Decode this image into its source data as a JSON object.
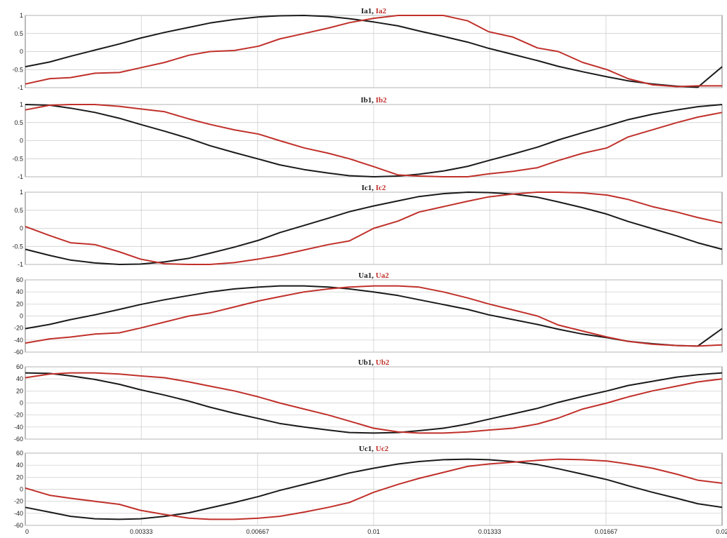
{
  "colors": {
    "series1": "#1a1a1a",
    "series2": "#c0302a",
    "grid": "#c8c8c8",
    "axis": "#555555"
  },
  "chart_data": [
    {
      "type": "line",
      "title": "Ia1, Ia2",
      "series": [
        {
          "name": "Ia1",
          "x": [
            0,
            0.0007,
            0.0013,
            0.002,
            0.0027,
            0.0033,
            0.004,
            0.0047,
            0.0053,
            0.006,
            0.0067,
            0.0073,
            0.008,
            0.0087,
            0.0093,
            0.01,
            0.0107,
            0.0113,
            0.012,
            0.0127,
            0.0133,
            0.014,
            0.0147,
            0.0153,
            0.016,
            0.0167,
            0.0173,
            0.018,
            0.0187,
            0.0193,
            0.02
          ],
          "values": [
            -0.42,
            -0.29,
            -0.13,
            0.04,
            0.21,
            0.37,
            0.53,
            0.67,
            0.79,
            0.89,
            0.96,
            0.99,
            1.0,
            0.97,
            0.91,
            0.82,
            0.71,
            0.57,
            0.42,
            0.26,
            0.09,
            -0.08,
            -0.25,
            -0.41,
            -0.56,
            -0.7,
            -0.81,
            -0.9,
            -0.96,
            -0.99,
            -0.42
          ]
        },
        {
          "name": "Ia2",
          "x": [
            0,
            0.0007,
            0.0013,
            0.002,
            0.0027,
            0.0033,
            0.004,
            0.0047,
            0.0053,
            0.006,
            0.0067,
            0.0073,
            0.008,
            0.0087,
            0.0093,
            0.01,
            0.0107,
            0.0113,
            0.012,
            0.0127,
            0.0133,
            0.014,
            0.0147,
            0.0153,
            0.016,
            0.0167,
            0.0173,
            0.018,
            0.0187,
            0.0193,
            0.02
          ],
          "values": [
            -0.9,
            -0.75,
            -0.72,
            -0.6,
            -0.58,
            -0.45,
            -0.3,
            -0.1,
            0.0,
            0.03,
            0.15,
            0.35,
            0.5,
            0.65,
            0.8,
            0.92,
            1.0,
            1.0,
            1.0,
            0.85,
            0.55,
            0.4,
            0.1,
            0.0,
            -0.3,
            -0.5,
            -0.75,
            -0.92,
            -0.97,
            -0.95,
            -0.95
          ]
        }
      ],
      "ylim": [
        -1,
        1
      ],
      "yticks": [
        "1",
        "0.5",
        "0",
        "-0.5",
        "-1"
      ],
      "grid": true
    },
    {
      "type": "line",
      "title": "Ib1, Ib2",
      "series": [
        {
          "name": "Ib1",
          "x": [
            0,
            0.0007,
            0.0013,
            0.002,
            0.0027,
            0.0033,
            0.004,
            0.0047,
            0.0053,
            0.006,
            0.0067,
            0.0073,
            0.008,
            0.0087,
            0.0093,
            0.01,
            0.0107,
            0.0113,
            0.012,
            0.0127,
            0.0133,
            0.014,
            0.0147,
            0.0153,
            0.016,
            0.0167,
            0.0173,
            0.018,
            0.0187,
            0.0193,
            0.02
          ],
          "values": [
            1.0,
            0.98,
            0.9,
            0.78,
            0.62,
            0.45,
            0.26,
            0.06,
            -0.14,
            -0.33,
            -0.51,
            -0.67,
            -0.8,
            -0.9,
            -0.97,
            -1.0,
            -0.98,
            -0.93,
            -0.84,
            -0.71,
            -0.55,
            -0.37,
            -0.18,
            0.02,
            0.22,
            0.41,
            0.58,
            0.73,
            0.85,
            0.94,
            1.0
          ]
        },
        {
          "name": "Ib2",
          "x": [
            0,
            0.0007,
            0.0013,
            0.002,
            0.0027,
            0.0033,
            0.004,
            0.0047,
            0.0053,
            0.006,
            0.0067,
            0.0073,
            0.008,
            0.0087,
            0.0093,
            0.01,
            0.0107,
            0.0113,
            0.012,
            0.0127,
            0.0133,
            0.014,
            0.0147,
            0.0153,
            0.016,
            0.0167,
            0.0173,
            0.018,
            0.0187,
            0.0193,
            0.02
          ],
          "values": [
            0.85,
            0.98,
            1.0,
            1.0,
            0.95,
            0.88,
            0.8,
            0.6,
            0.45,
            0.3,
            0.18,
            0.0,
            -0.2,
            -0.35,
            -0.5,
            -0.72,
            -0.95,
            -0.98,
            -1.0,
            -1.0,
            -0.92,
            -0.85,
            -0.75,
            -0.55,
            -0.35,
            -0.2,
            0.1,
            0.3,
            0.5,
            0.65,
            0.78
          ]
        }
      ],
      "ylim": [
        -1,
        1
      ],
      "yticks": [
        "1",
        "0.5",
        "0",
        "-0.5",
        "-1"
      ],
      "grid": true
    },
    {
      "type": "line",
      "title": "Ic1, Ic2",
      "series": [
        {
          "name": "Ic1",
          "x": [
            0,
            0.0007,
            0.0013,
            0.002,
            0.0027,
            0.0033,
            0.004,
            0.0047,
            0.0053,
            0.006,
            0.0067,
            0.0073,
            0.008,
            0.0087,
            0.0093,
            0.01,
            0.0107,
            0.0113,
            0.012,
            0.0127,
            0.0133,
            0.014,
            0.0147,
            0.0153,
            0.016,
            0.0167,
            0.0173,
            0.018,
            0.0187,
            0.0193,
            0.02
          ],
          "values": [
            -0.58,
            -0.75,
            -0.88,
            -0.96,
            -1.0,
            -0.99,
            -0.93,
            -0.83,
            -0.69,
            -0.52,
            -0.33,
            -0.12,
            0.08,
            0.28,
            0.46,
            0.62,
            0.76,
            0.88,
            0.96,
            1.0,
            0.99,
            0.95,
            0.86,
            0.73,
            0.57,
            0.39,
            0.19,
            -0.01,
            -0.21,
            -0.4,
            -0.58
          ]
        },
        {
          "name": "Ic2",
          "x": [
            0,
            0.0007,
            0.0013,
            0.002,
            0.0027,
            0.0033,
            0.004,
            0.0047,
            0.0053,
            0.006,
            0.0067,
            0.0073,
            0.008,
            0.0087,
            0.0093,
            0.01,
            0.0107,
            0.0113,
            0.012,
            0.0127,
            0.0133,
            0.014,
            0.0147,
            0.0153,
            0.016,
            0.0167,
            0.0173,
            0.018,
            0.0187,
            0.0193,
            0.02
          ],
          "values": [
            0.05,
            -0.2,
            -0.4,
            -0.45,
            -0.65,
            -0.85,
            -0.98,
            -1.0,
            -1.0,
            -0.95,
            -0.85,
            -0.75,
            -0.6,
            -0.45,
            -0.35,
            0.0,
            0.2,
            0.45,
            0.6,
            0.75,
            0.87,
            0.95,
            1.0,
            1.0,
            0.98,
            0.92,
            0.8,
            0.6,
            0.45,
            0.3,
            0.15
          ]
        }
      ],
      "ylim": [
        -1,
        1
      ],
      "yticks": [
        "1",
        "0.5",
        "0",
        "-0.5",
        "-1"
      ],
      "grid": true
    },
    {
      "type": "line",
      "title": "Ua1, Ua2",
      "series": [
        {
          "name": "Ua1",
          "x": [
            0,
            0.0007,
            0.0013,
            0.002,
            0.0027,
            0.0033,
            0.004,
            0.0047,
            0.0053,
            0.006,
            0.0067,
            0.0073,
            0.008,
            0.0087,
            0.0093,
            0.01,
            0.0107,
            0.0113,
            0.012,
            0.0127,
            0.0133,
            0.014,
            0.0147,
            0.0153,
            0.016,
            0.0167,
            0.0173,
            0.018,
            0.0187,
            0.0193,
            0.02
          ],
          "values": [
            -21,
            -14,
            -6,
            2,
            11,
            19,
            27,
            34,
            40,
            45,
            48,
            50,
            50,
            48,
            45,
            40,
            34,
            27,
            19,
            11,
            2,
            -6,
            -14,
            -22,
            -30,
            -36,
            -42,
            -46,
            -49,
            -50,
            -21
          ]
        },
        {
          "name": "Ua2",
          "x": [
            0,
            0.0007,
            0.0013,
            0.002,
            0.0027,
            0.0033,
            0.004,
            0.0047,
            0.0053,
            0.006,
            0.0067,
            0.0073,
            0.008,
            0.0087,
            0.0093,
            0.01,
            0.0107,
            0.0113,
            0.012,
            0.0127,
            0.0133,
            0.014,
            0.0147,
            0.0153,
            0.016,
            0.0167,
            0.0173,
            0.018,
            0.0187,
            0.0193,
            0.02
          ],
          "values": [
            -45,
            -38,
            -35,
            -30,
            -28,
            -20,
            -10,
            0,
            5,
            15,
            25,
            32,
            40,
            45,
            48,
            50,
            50,
            48,
            40,
            30,
            20,
            10,
            0,
            -15,
            -25,
            -35,
            -42,
            -47,
            -49,
            -50,
            -48
          ]
        }
      ],
      "ylim": [
        -60,
        60
      ],
      "yticks": [
        "60",
        "40",
        "20",
        "0",
        "-20",
        "-40",
        "-60"
      ],
      "grid": true
    },
    {
      "type": "line",
      "title": "Ub1, Ub2",
      "series": [
        {
          "name": "Ub1",
          "x": [
            0,
            0.0007,
            0.0013,
            0.002,
            0.0027,
            0.0033,
            0.004,
            0.0047,
            0.0053,
            0.006,
            0.0067,
            0.0073,
            0.008,
            0.0087,
            0.0093,
            0.01,
            0.0107,
            0.0113,
            0.012,
            0.0127,
            0.0133,
            0.014,
            0.0147,
            0.0153,
            0.016,
            0.0167,
            0.0173,
            0.018,
            0.0187,
            0.0193,
            0.02
          ],
          "values": [
            50,
            49,
            45,
            39,
            31,
            22,
            13,
            3,
            -7,
            -17,
            -26,
            -34,
            -40,
            -45,
            -49,
            -50,
            -49,
            -46,
            -42,
            -35,
            -27,
            -18,
            -9,
            1,
            11,
            20,
            29,
            36,
            43,
            47,
            50
          ]
        },
        {
          "name": "Ub2",
          "x": [
            0,
            0.0007,
            0.0013,
            0.002,
            0.0027,
            0.0033,
            0.004,
            0.0047,
            0.0053,
            0.006,
            0.0067,
            0.0073,
            0.008,
            0.0087,
            0.0093,
            0.01,
            0.0107,
            0.0113,
            0.012,
            0.0127,
            0.0133,
            0.014,
            0.0147,
            0.0153,
            0.016,
            0.0167,
            0.0173,
            0.018,
            0.0187,
            0.0193,
            0.02
          ],
          "values": [
            42,
            48,
            50,
            50,
            48,
            45,
            42,
            35,
            28,
            20,
            10,
            0,
            -10,
            -20,
            -30,
            -42,
            -48,
            -50,
            -50,
            -48,
            -45,
            -42,
            -35,
            -25,
            -10,
            0,
            10,
            20,
            28,
            35,
            40
          ]
        }
      ],
      "ylim": [
        -60,
        60
      ],
      "yticks": [
        "60",
        "40",
        "20",
        "0",
        "-20",
        "-40",
        "-60"
      ],
      "grid": true
    },
    {
      "type": "line",
      "title": "Uc1, Uc2",
      "series": [
        {
          "name": "Uc1",
          "x": [
            0,
            0.0007,
            0.0013,
            0.002,
            0.0027,
            0.0033,
            0.004,
            0.0047,
            0.0053,
            0.006,
            0.0067,
            0.0073,
            0.008,
            0.0087,
            0.0093,
            0.01,
            0.0107,
            0.0113,
            0.012,
            0.0127,
            0.0133,
            0.014,
            0.0147,
            0.0153,
            0.016,
            0.0167,
            0.0173,
            0.018,
            0.0187,
            0.0193,
            0.02
          ],
          "values": [
            -30,
            -38,
            -45,
            -49,
            -50,
            -49,
            -45,
            -39,
            -31,
            -22,
            -12,
            -2,
            8,
            18,
            27,
            35,
            42,
            46,
            49,
            50,
            49,
            46,
            41,
            34,
            25,
            16,
            6,
            -5,
            -15,
            -24,
            -30
          ]
        },
        {
          "name": "Uc2",
          "x": [
            0,
            0.0007,
            0.0013,
            0.002,
            0.0027,
            0.0033,
            0.004,
            0.0047,
            0.0053,
            0.006,
            0.0067,
            0.0073,
            0.008,
            0.0087,
            0.0093,
            0.01,
            0.0107,
            0.0113,
            0.012,
            0.0127,
            0.0133,
            0.014,
            0.0147,
            0.0153,
            0.016,
            0.0167,
            0.0173,
            0.018,
            0.0187,
            0.0193,
            0.02
          ],
          "values": [
            2,
            -10,
            -15,
            -20,
            -25,
            -35,
            -42,
            -48,
            -50,
            -50,
            -48,
            -45,
            -38,
            -30,
            -22,
            -5,
            8,
            18,
            28,
            38,
            42,
            45,
            48,
            50,
            49,
            47,
            42,
            35,
            25,
            15,
            10
          ]
        }
      ],
      "ylim": [
        -60,
        60
      ],
      "yticks": [
        "60",
        "40",
        "20",
        "0",
        "-20",
        "-40",
        "-60"
      ],
      "grid": true
    }
  ],
  "xaxis": {
    "xlim": [
      0,
      0.02
    ],
    "ticks": [
      0,
      0.00333,
      0.00667,
      0.01,
      0.01333,
      0.01667,
      0.02
    ],
    "tick_labels": [
      "0",
      "0.00333",
      "0.00667",
      "0.01",
      "0.01333",
      "0.01667",
      "0.02"
    ]
  }
}
